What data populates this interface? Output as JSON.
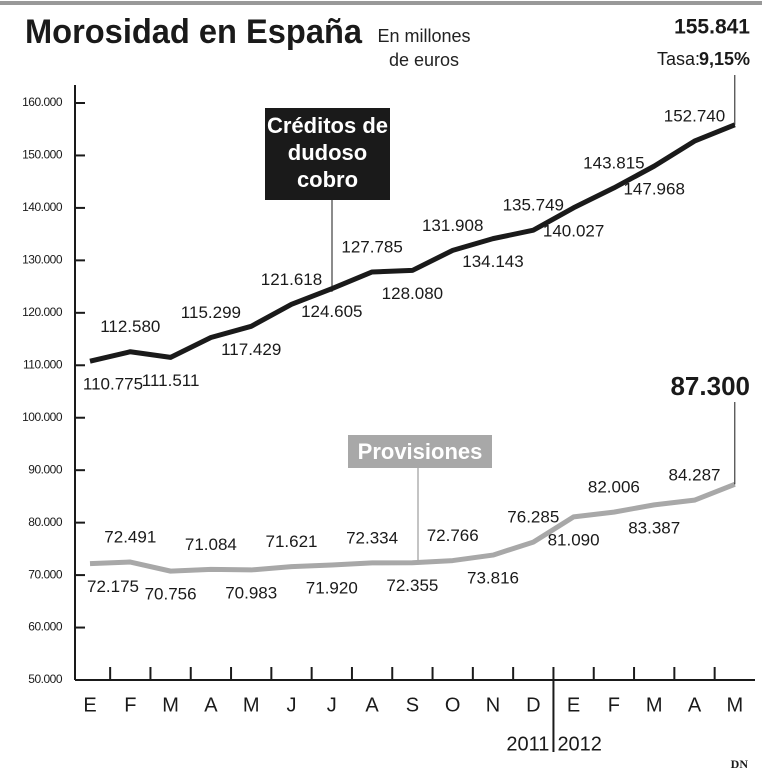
{
  "chart_data": {
    "type": "line",
    "title": "Morosidad en España",
    "subtitle": "En millones de euros",
    "categories": [
      "E",
      "F",
      "M",
      "A",
      "M",
      "J",
      "J",
      "A",
      "S",
      "O",
      "N",
      "D",
      "E",
      "F",
      "M",
      "A",
      "M"
    ],
    "years": [
      "2011",
      "2012"
    ],
    "series": [
      {
        "name": "Créditos de dudoso cobro",
        "color": "#1a1a1a",
        "values": [
          110775,
          112580,
          111511,
          115299,
          117429,
          121618,
          124605,
          127785,
          128080,
          131908,
          134143,
          135749,
          140027,
          143815,
          147968,
          152740,
          155841
        ],
        "value_labels": [
          "110.775",
          "112.580",
          "111.511",
          "115.299",
          "117.429",
          "121.618",
          "124.605",
          "127.785",
          "128.080",
          "131.908",
          "134.143",
          "135.749",
          "140.027",
          "143.815",
          "147.968",
          "152.740",
          "155.841"
        ]
      },
      {
        "name": "Provisiones",
        "color": "#a8a8a8",
        "values": [
          72175,
          72491,
          70756,
          71084,
          70983,
          71621,
          71920,
          72334,
          72355,
          72766,
          73816,
          76285,
          81090,
          82006,
          83387,
          84287,
          87300
        ],
        "value_labels": [
          "72.175",
          "72.491",
          "70.756",
          "71.084",
          "70.983",
          "71.621",
          "71.920",
          "72.334",
          "72.355",
          "72.766",
          "73.816",
          "76.285",
          "81.090",
          "82.006",
          "83.387",
          "84.287",
          "87.300"
        ]
      }
    ],
    "annotations": {
      "rate_label": "Tasa:",
      "rate": "9,15%"
    },
    "source": "DN",
    "ylim": [
      50000,
      160000
    ],
    "yticks": [
      {
        "value": 50000,
        "label": "50.000"
      },
      {
        "value": 60000,
        "label": "60.000"
      },
      {
        "value": 70000,
        "label": "70.000"
      },
      {
        "value": 80000,
        "label": "80.000"
      },
      {
        "value": 90000,
        "label": "90.000"
      },
      {
        "value": 100000,
        "label": "100.000"
      },
      {
        "value": 110000,
        "label": "110.000"
      },
      {
        "value": 120000,
        "label": "120.000"
      },
      {
        "value": 130000,
        "label": "130.000"
      },
      {
        "value": 140000,
        "label": "140.000"
      },
      {
        "value": 150000,
        "label": "150.000"
      },
      {
        "value": 160000,
        "label": "160.000"
      }
    ]
  }
}
